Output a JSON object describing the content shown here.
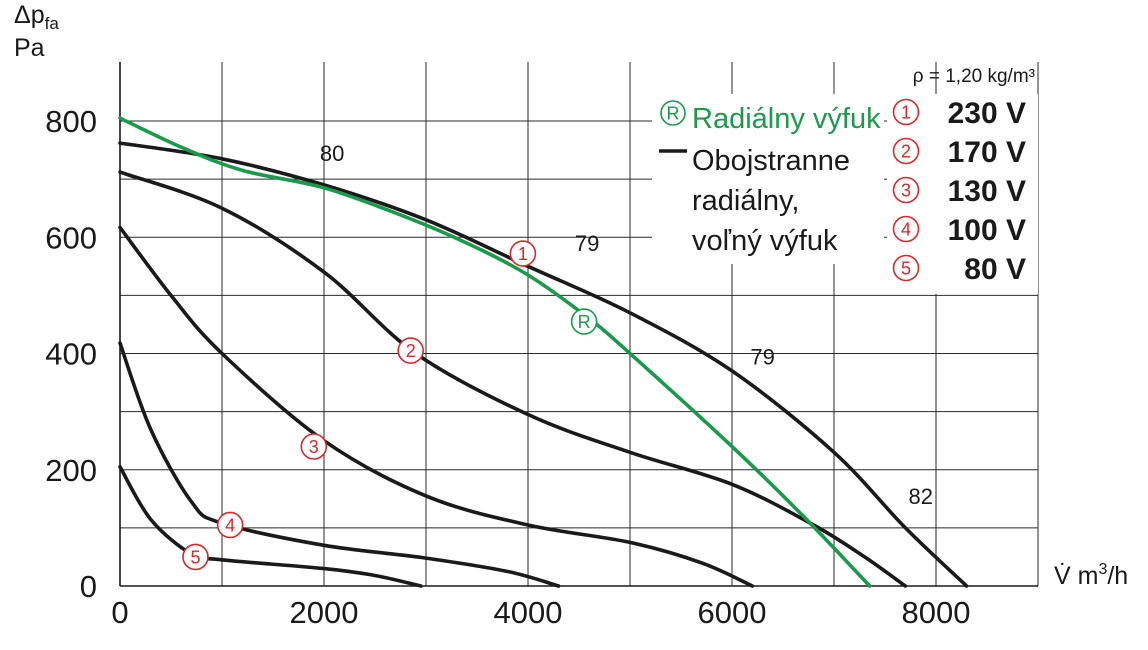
{
  "chart_data": {
    "type": "line",
    "ylabel_line1": "Δp",
    "ylabel_sub": "fa",
    "ylabel_line2": "Pa",
    "xlabel_prefix": "V̇ m",
    "xlabel_sup": "3",
    "xlabel_suffix": "/h",
    "xlim": [
      0,
      9000
    ],
    "ylim": [
      0,
      850
    ],
    "xticks": [
      0,
      2000,
      4000,
      6000,
      8000
    ],
    "xtick_labels": [
      "0",
      "2000",
      "4000",
      "6000",
      "8000"
    ],
    "yticks": [
      0,
      200,
      400,
      600,
      800
    ],
    "ytick_labels": [
      "0",
      "200",
      "400",
      "600",
      "800"
    ],
    "grid": true,
    "density_note": "ρ = 1,20 kg/m³",
    "legend": {
      "green_marker": "R",
      "green_label": "Radiálny výfuk",
      "black_label_lines": [
        "Obojstranne",
        "radiálny,",
        "voľný výfuk"
      ]
    },
    "voltages": [
      {
        "marker": "1",
        "label": "230 V"
      },
      {
        "marker": "2",
        "label": "170 V"
      },
      {
        "marker": "3",
        "label": "130 V"
      },
      {
        "marker": "4",
        "label": "100 V"
      },
      {
        "marker": "5",
        "label": "80 V"
      }
    ],
    "series": [
      {
        "marker": "1",
        "color": "#1a1a1a",
        "x": [
          0,
          1000,
          2000,
          3000,
          4000,
          5000,
          6000,
          7000,
          7700,
          8300
        ],
        "y": [
          762,
          735,
          690,
          630,
          550,
          470,
          370,
          230,
          100,
          0
        ]
      },
      {
        "marker": "2",
        "color": "#1a1a1a",
        "x": [
          0,
          1000,
          2000,
          2900,
          4000,
          5000,
          6000,
          6800,
          7300,
          7700
        ],
        "y": [
          712,
          650,
          540,
          400,
          295,
          230,
          175,
          105,
          50,
          0
        ]
      },
      {
        "marker": "3",
        "color": "#1a1a1a",
        "x": [
          0,
          500,
          1000,
          2000,
          3000,
          4000,
          5000,
          5700,
          6200
        ],
        "y": [
          617,
          500,
          400,
          250,
          155,
          105,
          75,
          40,
          0
        ]
      },
      {
        "marker": "4",
        "color": "#1a1a1a",
        "x": [
          0,
          300,
          700,
          1000,
          2000,
          3000,
          3800,
          4300
        ],
        "y": [
          418,
          270,
          145,
          108,
          70,
          48,
          25,
          0
        ]
      },
      {
        "marker": "5",
        "color": "#1a1a1a",
        "x": [
          0,
          300,
          700,
          1000,
          2000,
          2500,
          2950
        ],
        "y": [
          205,
          115,
          55,
          45,
          30,
          18,
          0
        ]
      },
      {
        "marker": "R",
        "color": "#1a9a4a",
        "x": [
          0,
          600,
          1200,
          2000,
          2800,
          3400,
          4000,
          4600,
          5000,
          6000,
          6700,
          7350
        ],
        "y": [
          805,
          755,
          715,
          685,
          635,
          590,
          535,
          460,
          400,
          240,
          120,
          0
        ]
      }
    ],
    "annotations": [
      {
        "text": "80",
        "x": 2080,
        "y": 745
      },
      {
        "text": "79",
        "x": 4580,
        "y": 590
      },
      {
        "text": "79",
        "x": 6300,
        "y": 395
      },
      {
        "text": "82",
        "x": 7850,
        "y": 155
      }
    ],
    "curve_markers": [
      {
        "marker": "1",
        "x": 3950,
        "y": 572
      },
      {
        "marker": "2",
        "x": 2850,
        "y": 405
      },
      {
        "marker": "3",
        "x": 1900,
        "y": 240
      },
      {
        "marker": "4",
        "x": 1080,
        "y": 105
      },
      {
        "marker": "5",
        "x": 740,
        "y": 50
      },
      {
        "marker": "R",
        "x": 4550,
        "y": 455
      }
    ]
  }
}
